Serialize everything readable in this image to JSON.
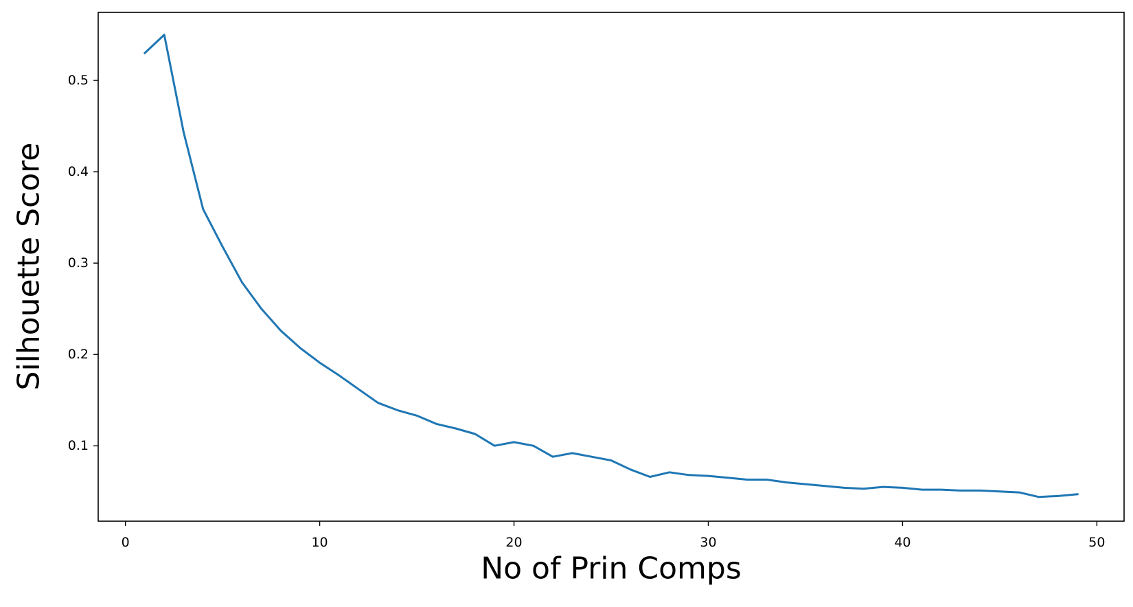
{
  "chart_data": {
    "type": "line",
    "title": "",
    "xlabel": "No of Prin Comps",
    "ylabel": "Silhouette Score",
    "xlim": [
      -1.4,
      51.4
    ],
    "ylim": [
      0.0175,
      0.5745
    ],
    "xticks": [
      0,
      10,
      20,
      30,
      40,
      50
    ],
    "xtick_labels": [
      "0",
      "10",
      "20",
      "30",
      "40",
      "50"
    ],
    "yticks": [
      0.1,
      0.2,
      0.3,
      0.4,
      0.5
    ],
    "ytick_labels": [
      "0.1",
      "0.2",
      "0.3",
      "0.4",
      "0.5"
    ],
    "grid": false,
    "legend": false,
    "line_color": "#1f77b4",
    "series": [
      {
        "x": [
          1,
          2,
          3,
          4,
          5,
          6,
          7,
          8,
          9,
          10,
          11,
          12,
          13,
          14,
          15,
          16,
          17,
          18,
          19,
          20,
          21,
          22,
          23,
          24,
          25,
          26,
          27,
          28,
          29,
          30,
          31,
          32,
          33,
          34,
          35,
          36,
          37,
          38,
          39,
          40,
          41,
          42,
          43,
          44,
          45,
          46,
          47,
          48,
          49
        ],
        "values": [
          0.53,
          0.55,
          0.443,
          0.359,
          0.318,
          0.279,
          0.25,
          0.226,
          0.207,
          0.191,
          0.177,
          0.162,
          0.147,
          0.139,
          0.133,
          0.124,
          0.119,
          0.113,
          0.1,
          0.104,
          0.1,
          0.088,
          0.092,
          0.088,
          0.084,
          0.074,
          0.066,
          0.071,
          0.068,
          0.067,
          0.065,
          0.063,
          0.063,
          0.06,
          0.058,
          0.056,
          0.054,
          0.053,
          0.055,
          0.054,
          0.052,
          0.052,
          0.051,
          0.051,
          0.05,
          0.049,
          0.044,
          0.045,
          0.047
        ]
      }
    ]
  }
}
